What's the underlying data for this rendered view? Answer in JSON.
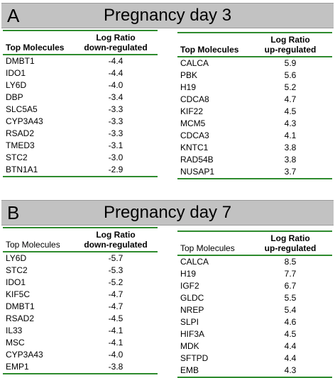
{
  "panels": [
    {
      "letter": "A",
      "title": "Pregnancy day 3",
      "down": {
        "header_name": "Top Molecules",
        "header_val_1": "Log Ratio",
        "header_val_2": "down-regulated",
        "rows": [
          [
            "DMBT1",
            "-4.4"
          ],
          [
            "IDO1",
            "-4.4"
          ],
          [
            "LY6D",
            "-4.0"
          ],
          [
            "DBP",
            "-3.4"
          ],
          [
            "SLC5A5",
            "-3.3"
          ],
          [
            "CYP3A43",
            "-3.3"
          ],
          [
            "RSAD2",
            "-3.3"
          ],
          [
            "TMED3",
            "-3.1"
          ],
          [
            "STC2",
            "-3.0"
          ],
          [
            "BTN1A1",
            "-2.9"
          ]
        ]
      },
      "up": {
        "header_name": "Top Molecules",
        "header_val_1": "Log Ratio",
        "header_val_2": "up-regulated",
        "rows": [
          [
            "CALCA",
            "5.9"
          ],
          [
            "PBK",
            "5.6"
          ],
          [
            "H19",
            "5.2"
          ],
          [
            "CDCA8",
            "4.7"
          ],
          [
            "KIF22",
            "4.5"
          ],
          [
            "MCM5",
            "4.3"
          ],
          [
            "CDCA3",
            "4.1"
          ],
          [
            "KNTC1",
            "3.8"
          ],
          [
            "RAD54B",
            "3.8"
          ],
          [
            "NUSAP1",
            "3.7"
          ]
        ]
      }
    },
    {
      "letter": "B",
      "title": "Pregnancy day 7",
      "down": {
        "header_name": "Top Molecules",
        "header_val_1": "Log Ratio",
        "header_val_2": "down-regulated",
        "rows": [
          [
            "LY6D",
            "-5.7"
          ],
          [
            "STC2",
            "-5.3"
          ],
          [
            "IDO1",
            "-5.2"
          ],
          [
            "KIF5C",
            "-4.7"
          ],
          [
            "DMBT1",
            "-4.7"
          ],
          [
            "RSAD2",
            "-4.5"
          ],
          [
            "IL33",
            "-4.1"
          ],
          [
            "MSC",
            "-4.1"
          ],
          [
            "CYP3A43",
            "-4.0"
          ],
          [
            "EMP1",
            "-3.8"
          ]
        ]
      },
      "up": {
        "header_name": "Top Molecules",
        "header_val_1": "Log Ratio",
        "header_val_2": "up-regulated",
        "rows": [
          [
            "CALCA",
            "8.5"
          ],
          [
            "H19",
            "7.7"
          ],
          [
            "IGF2",
            "6.7"
          ],
          [
            "GLDC",
            "5.5"
          ],
          [
            "NREP",
            "5.4"
          ],
          [
            "SLPI",
            "4.6"
          ],
          [
            "HIF3A",
            "4.5"
          ],
          [
            "MDK",
            "4.4"
          ],
          [
            "SFTPD",
            "4.4"
          ],
          [
            "EMB",
            "4.3"
          ]
        ]
      }
    }
  ]
}
